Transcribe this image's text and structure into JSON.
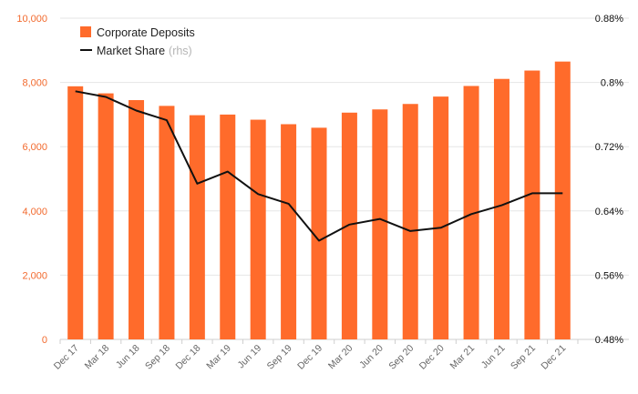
{
  "chart_data": {
    "type": "bar",
    "categories": [
      "Dec 17",
      "Mar 18",
      "Jun 18",
      "Sep 18",
      "Dec 18",
      "Mar 19",
      "Jun 19",
      "Sep 19",
      "Dec 19",
      "Mar 20",
      "Jun 20",
      "Sep 20",
      "Dec 20",
      "Mar 21",
      "Jun 21",
      "Sep 21",
      "Dec 21"
    ],
    "series": [
      {
        "name": "Corporate Deposits",
        "type": "bar",
        "axis": "left",
        "color": "#ff6b2b",
        "values": [
          7880,
          7660,
          7450,
          7270,
          6980,
          7000,
          6840,
          6700,
          6590,
          7060,
          7160,
          7330,
          7560,
          7890,
          8110,
          8370,
          8650
        ]
      },
      {
        "name": "Market Share",
        "type": "line",
        "axis": "right",
        "color": "#111111",
        "values": [
          0.789,
          0.782,
          0.765,
          0.753,
          0.674,
          0.689,
          0.661,
          0.649,
          0.603,
          0.623,
          0.63,
          0.615,
          0.619,
          0.636,
          0.647,
          0.662,
          0.662
        ]
      }
    ],
    "y_left": {
      "min": 0,
      "max": 10000,
      "ticks": [
        "0",
        "2,000",
        "4,000",
        "6,000",
        "8,000",
        "10,000"
      ],
      "color": "#f26a2e"
    },
    "y_right": {
      "min": 0.48,
      "max": 0.88,
      "ticks": [
        "0.48%",
        "0.56%",
        "0.64%",
        "0.72%",
        "0.8%",
        "0.88%"
      ]
    },
    "grid": true,
    "legend": {
      "position": "top-left",
      "items": [
        {
          "label": "Corporate Deposits",
          "suffix": ""
        },
        {
          "label": "Market Share",
          "suffix": "(rhs)"
        }
      ]
    }
  }
}
